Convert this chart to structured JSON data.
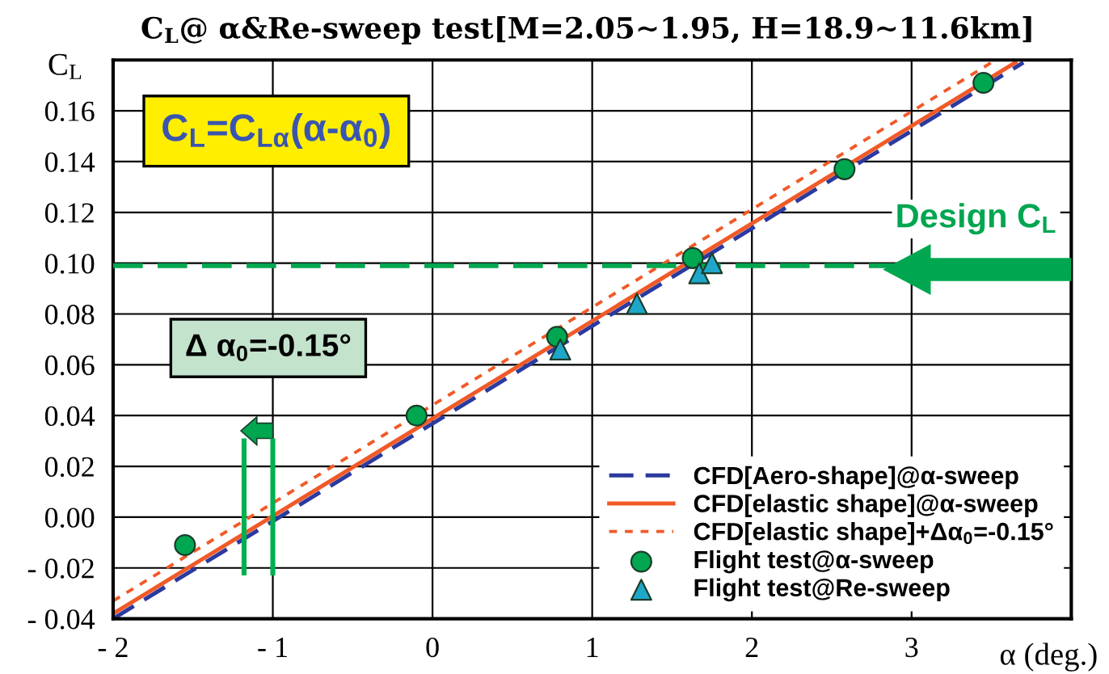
{
  "chart_data": {
    "type": "line",
    "title": "C$_{L}$@ α&Re-sweep test[M=2.05∼1.95, H=18.9∼11.6km]",
    "xlabel": "α (deg.)",
    "ylabel": "C$_{L}$",
    "xlim": [
      -2,
      4
    ],
    "ylim": [
      -0.04,
      0.18
    ],
    "xticks": [
      {
        "value": -2,
        "label": "- 2"
      },
      {
        "value": -1,
        "label": "- 1"
      },
      0,
      1,
      2,
      3
    ],
    "yticks": [
      {
        "value": -0.04,
        "label": "- 0.04"
      },
      {
        "value": -0.02,
        "label": "- 0.02"
      },
      {
        "value": 0,
        "label": "0.00"
      },
      {
        "value": 0.02,
        "label": "0.02"
      },
      {
        "value": 0.04,
        "label": "0.04"
      },
      {
        "value": 0.06,
        "label": "0.06"
      },
      {
        "value": 0.08,
        "label": "0.08"
      },
      {
        "value": 0.1,
        "label": "0.10"
      },
      {
        "value": 0.12,
        "label": "0.12"
      },
      {
        "value": 0.14,
        "label": "0.14"
      },
      {
        "value": 0.16,
        "label": "0.16"
      }
    ],
    "grid": true,
    "legend": "bottom right",
    "series": [
      {
        "name": "CFD[Aero-shape]@α-sweep",
        "type": "line",
        "color": "#2b3a9e",
        "line_style": "dashed",
        "marker": "none",
        "x": [
          -2,
          3.7
        ],
        "values": [
          -0.04,
          0.179
        ]
      },
      {
        "name": "CFD[elastic shape]@α-sweep",
        "type": "line",
        "color": "#f05a28",
        "line_style": "solid",
        "marker": "none",
        "x": [
          -2,
          3.65
        ],
        "values": [
          -0.038,
          0.179
        ]
      },
      {
        "name": "CFD[elastic shape]+Δα$_{0}$=-0.15°",
        "type": "line",
        "color": "#f05a28",
        "line_style": "dotted",
        "marker": "none",
        "x": [
          -2,
          3.5
        ],
        "values": [
          -0.033,
          0.179
        ]
      },
      {
        "name": "Flight test@α-sweep",
        "type": "scatter",
        "color": "#00a650",
        "marker": "circle",
        "x": [
          -1.55,
          -0.1,
          0.78,
          1.63,
          2.58,
          3.45
        ],
        "values": [
          -0.011,
          0.04,
          0.071,
          0.102,
          0.137,
          0.171
        ]
      },
      {
        "name": "Flight test@Re-sweep",
        "type": "scatter",
        "color": "#1fa7c9",
        "marker": "triangle",
        "x": [
          0.8,
          1.28,
          1.67,
          1.75
        ],
        "values": [
          0.066,
          0.084,
          0.096,
          0.1
        ]
      }
    ],
    "ref_lines": [
      {
        "axis": "y",
        "value": 0.099,
        "label": "Design C$_{L}$",
        "color": "#00a650",
        "line_style": "dashed"
      }
    ],
    "annotations": [
      "C$_{L}$=C$_{Lα}$(α-α$_{0}$)",
      "Δ α$_{0}$=-0.15°"
    ]
  }
}
